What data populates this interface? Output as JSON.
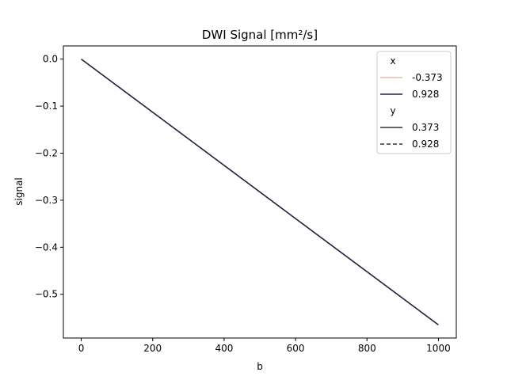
{
  "chart_data": {
    "type": "line",
    "title": "DWI Signal [mm²/s]",
    "xlabel": "b",
    "ylabel": "signal",
    "xlim": [
      -50,
      1050
    ],
    "ylim": [
      -0.593,
      0.028
    ],
    "grid": false,
    "x_ticks": [
      0,
      200,
      400,
      600,
      800,
      1000
    ],
    "y_ticks": [
      0.0,
      -0.1,
      -0.2,
      -0.3,
      -0.4,
      -0.5
    ],
    "x_tick_labels": [
      "0",
      "200",
      "400",
      "600",
      "800",
      "1000"
    ],
    "y_tick_labels": [
      "0.0",
      "−0.1",
      "−0.2",
      "−0.3",
      "−0.4",
      "−0.5"
    ],
    "series": [
      {
        "x": [
          0,
          1000
        ],
        "y": [
          0.0,
          -0.565
        ],
        "color": "#2a1b3d",
        "dash": "solid"
      }
    ],
    "legend": {
      "placement": "upper right",
      "groups": [
        {
          "title": "x",
          "entries": [
            {
              "label": "-0.373",
              "color": "#f0b7a9",
              "dash": "solid"
            },
            {
              "label": "0.928",
              "color": "#2d1e3e",
              "dash": "solid"
            }
          ]
        },
        {
          "title": "y",
          "entries": [
            {
              "label": "0.373",
              "color": "#333333",
              "dash": "solid"
            },
            {
              "label": "0.928",
              "color": "#333333",
              "dash": "dashed"
            }
          ]
        }
      ]
    }
  }
}
